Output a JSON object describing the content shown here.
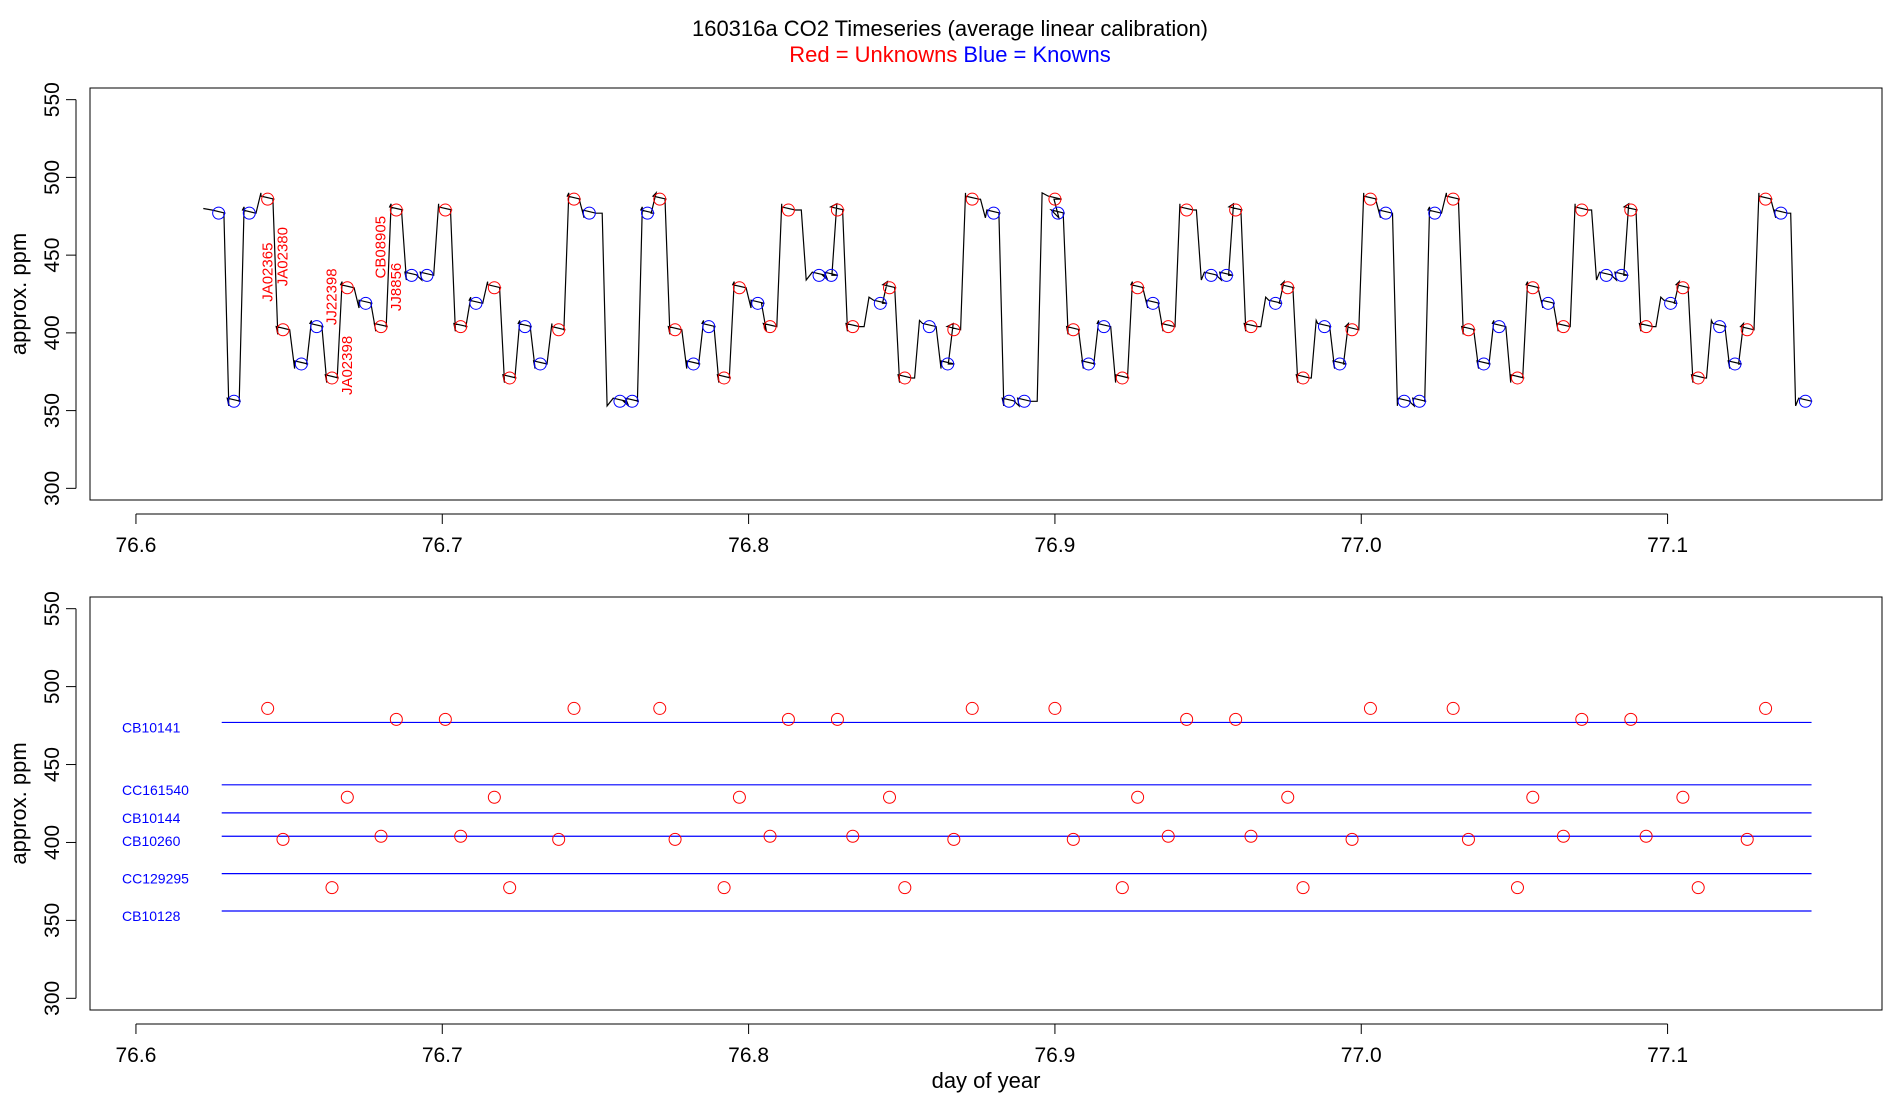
{
  "colors": {
    "unknown": "#ff0000",
    "known": "#0000ff",
    "trace": "#000000",
    "axis": "#000000"
  },
  "chart_data": {
    "title": "160316a   CO2 Timeseries (average linear calibration)",
    "subtitle": {
      "red": "Red = Unknowns",
      "blue": "Blue = Knowns"
    },
    "panels": [
      {
        "type": "line",
        "ylabel": "approx. ppm",
        "xlabel": "",
        "xlim": [
          76.585,
          77.17
        ],
        "ylim": [
          292.5,
          557.5
        ],
        "xticks": [
          "76.6",
          "76.7",
          "76.8",
          "76.9",
          "77.0",
          "77.1"
        ],
        "xtick_values": [
          76.6,
          76.7,
          76.8,
          76.9,
          77.0,
          77.1
        ],
        "yticks": [
          "300",
          "350",
          "400",
          "450",
          "500",
          "550"
        ],
        "ytick_values": [
          300,
          350,
          400,
          450,
          500,
          550
        ],
        "knowns": {
          "x": [
            76.627,
            76.632,
            76.637,
            76.654,
            76.659,
            76.675,
            76.69,
            76.695,
            76.711,
            76.727,
            76.732,
            76.748,
            76.758,
            76.762,
            76.767,
            76.782,
            76.787,
            76.803,
            76.823,
            76.827,
            76.843,
            76.859,
            76.865,
            76.88,
            76.885,
            76.89,
            76.901,
            76.911,
            76.916,
            76.932,
            76.951,
            76.956,
            76.972,
            76.988,
            76.993,
            77.008,
            77.014,
            77.019,
            77.024,
            77.04,
            77.045,
            77.061,
            77.08,
            77.085,
            77.101,
            77.117,
            77.122,
            77.137,
            77.145
          ],
          "y": [
            477,
            356,
            477,
            380,
            404,
            419,
            437,
            437,
            419,
            404,
            380,
            477,
            356,
            356,
            477,
            380,
            404,
            419,
            437,
            437,
            419,
            404,
            380,
            477,
            356,
            356,
            477,
            380,
            404,
            419,
            437,
            437,
            419,
            404,
            380,
            477,
            356,
            356,
            477,
            380,
            404,
            419,
            437,
            437,
            419,
            404,
            380,
            477,
            356
          ]
        },
        "unknowns": {
          "x": [
            76.643,
            76.648,
            76.664,
            76.669,
            76.68,
            76.685,
            76.701,
            76.706,
            76.717,
            76.722,
            76.738,
            76.743,
            76.771,
            76.776,
            76.792,
            76.797,
            76.807,
            76.813,
            76.829,
            76.834,
            76.846,
            76.851,
            76.867,
            76.873,
            76.9,
            76.906,
            76.922,
            76.927,
            76.937,
            76.943,
            76.959,
            76.964,
            76.976,
            76.981,
            76.997,
            77.003,
            77.03,
            77.035,
            77.051,
            77.056,
            77.066,
            77.072,
            77.088,
            77.093,
            77.105,
            77.11,
            77.126,
            77.132
          ],
          "y": [
            486,
            402,
            371,
            429,
            404,
            479,
            479,
            404,
            429,
            371,
            402,
            486,
            486,
            402,
            371,
            429,
            404,
            479,
            479,
            404,
            429,
            371,
            402,
            486,
            486,
            402,
            371,
            429,
            404,
            479,
            479,
            404,
            429,
            371,
            402,
            486,
            486,
            402,
            371,
            429,
            404,
            479,
            479,
            404,
            429,
            371,
            402,
            486
          ]
        },
        "annotations": [
          {
            "text": "JA02365",
            "x": 76.6445,
            "y": 420
          },
          {
            "text": "JA02380",
            "x": 76.6495,
            "y": 430
          },
          {
            "text": "JJ22398",
            "x": 76.6655,
            "y": 405
          },
          {
            "text": "JA02398",
            "x": 76.6705,
            "y": 360
          },
          {
            "text": "CB08905",
            "x": 76.6815,
            "y": 435
          },
          {
            "text": "JJ8856",
            "x": 76.6865,
            "y": 414
          }
        ]
      },
      {
        "type": "scatter",
        "ylabel": "approx. ppm",
        "xlabel": "day of year",
        "xlim": [
          76.585,
          77.17
        ],
        "ylim": [
          292.5,
          557.5
        ],
        "xticks": [
          "76.6",
          "76.7",
          "76.8",
          "76.9",
          "77.0",
          "77.1"
        ],
        "xtick_values": [
          76.6,
          76.7,
          76.8,
          76.9,
          77.0,
          77.1
        ],
        "yticks": [
          "300",
          "350",
          "400",
          "450",
          "500",
          "550"
        ],
        "ytick_values": [
          300,
          350,
          400,
          450,
          500,
          550
        ],
        "reference_lines": [
          {
            "name": "CB10141",
            "value": 477
          },
          {
            "name": "CC161540",
            "value": 437
          },
          {
            "name": "CB10144",
            "value": 419
          },
          {
            "name": "CB10260",
            "value": 404
          },
          {
            "name": "CC129295",
            "value": 380
          },
          {
            "name": "CB10128",
            "value": 356
          }
        ],
        "reference_line_xrange": [
          76.628,
          77.147
        ],
        "unknowns": {
          "x": [
            76.643,
            76.648,
            76.664,
            76.669,
            76.68,
            76.685,
            76.701,
            76.706,
            76.717,
            76.722,
            76.738,
            76.743,
            76.771,
            76.776,
            76.792,
            76.797,
            76.807,
            76.813,
            76.829,
            76.834,
            76.846,
            76.851,
            76.867,
            76.873,
            76.9,
            76.906,
            76.922,
            76.927,
            76.937,
            76.943,
            76.959,
            76.964,
            76.976,
            76.981,
            76.997,
            77.003,
            77.03,
            77.035,
            77.051,
            77.056,
            77.066,
            77.072,
            77.088,
            77.093,
            77.105,
            77.11,
            77.126,
            77.132
          ],
          "y": [
            486,
            402,
            371,
            429,
            404,
            479,
            479,
            404,
            429,
            371,
            402,
            486,
            486,
            402,
            371,
            429,
            404,
            479,
            479,
            404,
            429,
            371,
            402,
            486,
            486,
            402,
            371,
            429,
            404,
            479,
            479,
            404,
            429,
            371,
            402,
            486,
            486,
            402,
            371,
            429,
            404,
            479,
            479,
            404,
            429,
            371,
            402,
            486
          ]
        }
      }
    ]
  }
}
